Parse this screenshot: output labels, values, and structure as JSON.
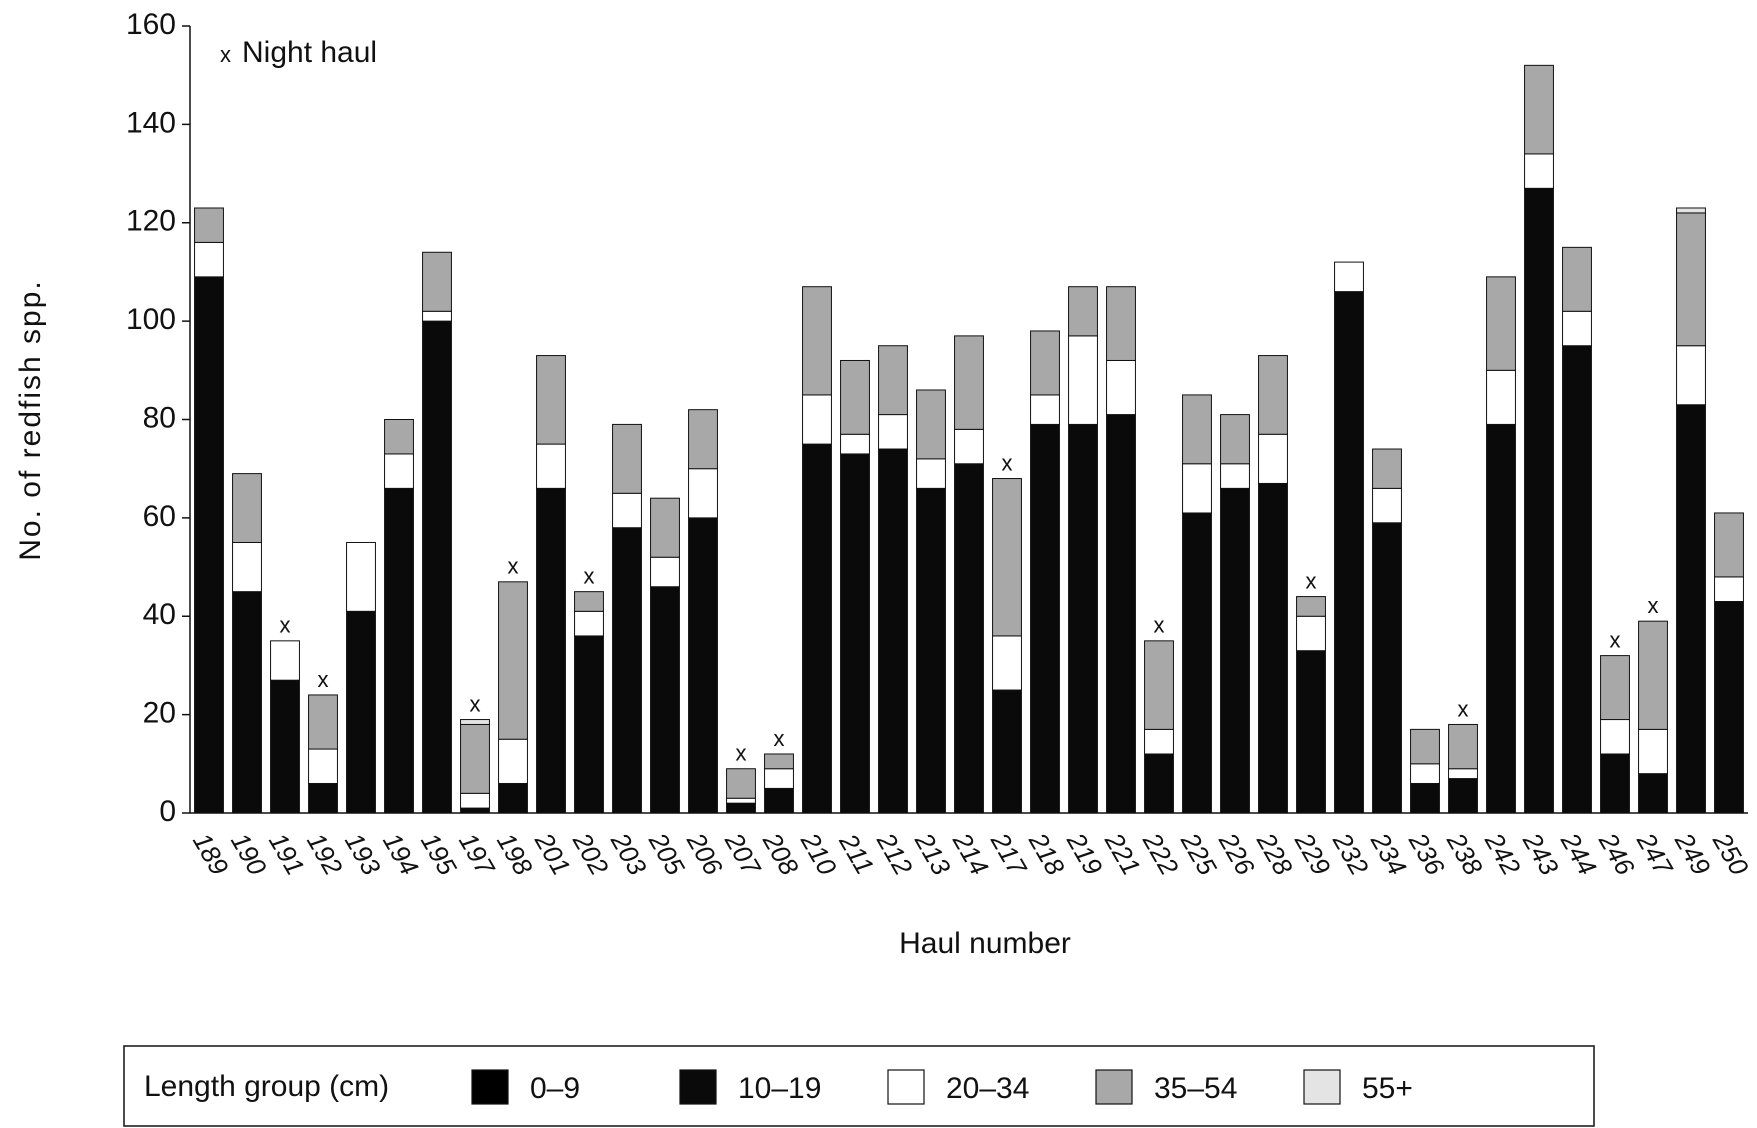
{
  "chart_data": {
    "type": "stacked-bar",
    "y_label": "No. of redfish spp.",
    "x_label": "Haul number",
    "legend_title": "Length group (cm)",
    "night_marker": "x",
    "night_haul_label": "Night haul",
    "night_hauls": [
      "191",
      "192",
      "197",
      "198",
      "202",
      "207",
      "208",
      "217",
      "222",
      "229",
      "238",
      "246",
      "247"
    ],
    "categories": [
      "189",
      "190",
      "191",
      "192",
      "193",
      "194",
      "195",
      "197",
      "198",
      "201",
      "202",
      "203",
      "205",
      "206",
      "207",
      "208",
      "210",
      "211",
      "212",
      "213",
      "214",
      "217",
      "218",
      "219",
      "221",
      "222",
      "225",
      "226",
      "228",
      "229",
      "232",
      "234",
      "236",
      "238",
      "242",
      "243",
      "244",
      "246",
      "247",
      "249",
      "250"
    ],
    "series": [
      {
        "name": "0–9",
        "color": "#000000",
        "values": [
          0,
          0,
          0,
          0,
          0,
          0,
          0,
          0,
          0,
          0,
          0,
          0,
          0,
          0,
          0,
          0,
          0,
          0,
          0,
          0,
          0,
          0,
          0,
          0,
          0,
          0,
          0,
          0,
          0,
          0,
          0,
          0,
          0,
          0,
          0,
          0,
          0,
          0,
          0,
          0,
          0
        ]
      },
      {
        "name": "10–19",
        "color": "#0a0a0a",
        "values": [
          109,
          45,
          27,
          6,
          41,
          66,
          100,
          1,
          6,
          66,
          36,
          58,
          46,
          60,
          2,
          5,
          75,
          73,
          74,
          66,
          71,
          25,
          79,
          79,
          81,
          12,
          61,
          66,
          67,
          33,
          106,
          59,
          6,
          7,
          79,
          127,
          95,
          12,
          8,
          83,
          43
        ]
      },
      {
        "name": "20–34",
        "color": "#ffffff",
        "values": [
          7,
          10,
          8,
          7,
          14,
          7,
          2,
          3,
          9,
          9,
          5,
          7,
          6,
          10,
          1,
          4,
          10,
          4,
          7,
          6,
          7,
          11,
          6,
          18,
          11,
          5,
          10,
          5,
          10,
          7,
          6,
          7,
          4,
          2,
          11,
          7,
          7,
          7,
          9,
          12,
          5
        ]
      },
      {
        "name": "35–54",
        "color": "#a8a8a8",
        "values": [
          7,
          14,
          0,
          11,
          0,
          7,
          12,
          14,
          32,
          18,
          4,
          14,
          12,
          12,
          6,
          3,
          22,
          15,
          14,
          14,
          19,
          32,
          13,
          10,
          15,
          18,
          14,
          10,
          16,
          4,
          0,
          8,
          7,
          9,
          19,
          18,
          13,
          13,
          22,
          27,
          13
        ]
      },
      {
        "name": "55+",
        "color": "#e4e4e4",
        "values": [
          0,
          0,
          0,
          0,
          0,
          0,
          0,
          1,
          0,
          0,
          0,
          0,
          0,
          0,
          0,
          0,
          0,
          0,
          0,
          0,
          0,
          0,
          0,
          0,
          0,
          0,
          0,
          0,
          0,
          0,
          0,
          0,
          0,
          0,
          0,
          0,
          0,
          0,
          0,
          1,
          0
        ]
      }
    ],
    "ylim": [
      0,
      160
    ],
    "yticks": [
      0,
      20,
      40,
      60,
      80,
      100,
      120,
      140,
      160
    ]
  }
}
